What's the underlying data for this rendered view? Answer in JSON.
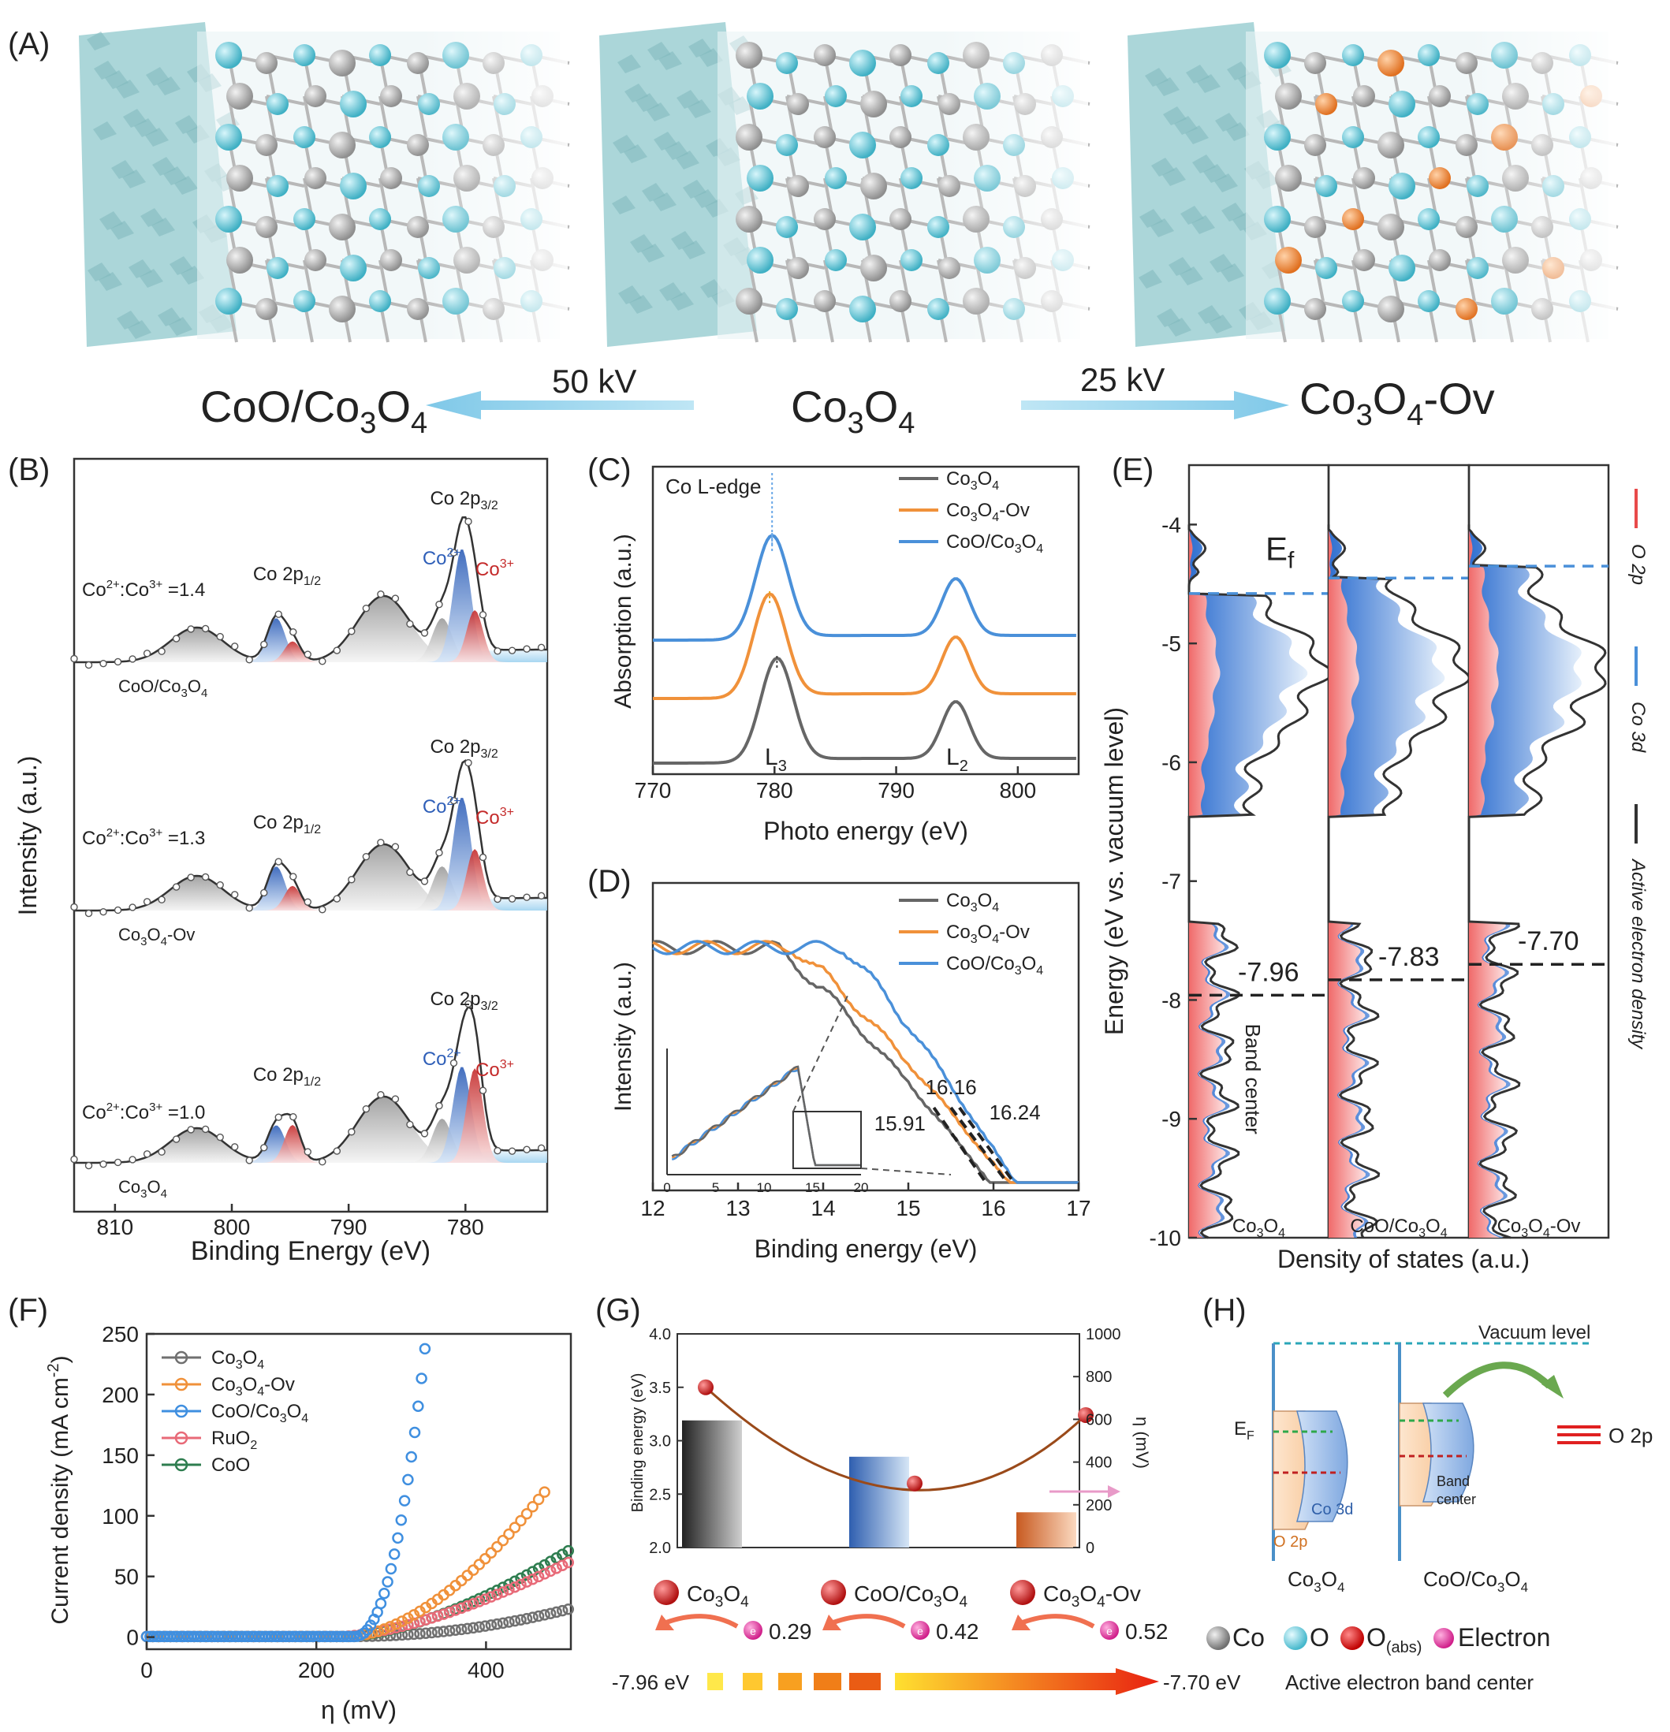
{
  "panel_labels": [
    "(A)",
    "(B)",
    "(C)",
    "(D)",
    "(E)",
    "(F)",
    "(G)",
    "(H)"
  ],
  "panelA": {
    "left_label": "CoO/Co3O4",
    "center_label": "Co3O4",
    "right_label": "Co3O4-Ov",
    "left_arrow_label": "50 kV",
    "right_arrow_label": "25 kV",
    "colors": {
      "co": "#8f8f8f",
      "o": "#55c4d6",
      "ov": "#e8803a",
      "surface": "#8fc9cc"
    }
  },
  "panelB": {
    "xlabel": "Binding Energy (eV)",
    "ylabel": "Intensity (a.u.)",
    "xticks": [
      "810",
      "800",
      "790",
      "780"
    ],
    "peak_12": "Co 2p1/2",
    "peak_32": "Co 2p3/2",
    "co2": "Co2+",
    "co3": "Co3+",
    "spectra": [
      {
        "sample": "CoO/Co3O4",
        "ratio": "Co2+:Co3+ =1.4"
      },
      {
        "sample": "Co3O4-Ov",
        "ratio": "Co2+:Co3+ =1.3"
      },
      {
        "sample": "Co3O4",
        "ratio": "Co2+:Co3+ =1.0"
      }
    ]
  },
  "panelC": {
    "title": "Co L-edge",
    "xlabel": "Photo energy (eV)",
    "ylabel": "Absorption (a.u.)",
    "xticks": [
      "770",
      "780",
      "790",
      "800"
    ],
    "peak_L3": "L3",
    "peak_L2": "L2",
    "legend": [
      "Co3O4",
      "Co3O4-Ov",
      "CoO/Co3O4"
    ],
    "colors": [
      "#666666",
      "#f0913a",
      "#4a90d9"
    ]
  },
  "panelD": {
    "xlabel": "Binding energy (eV)",
    "ylabel": "Intensity (a.u.)",
    "xticks": [
      "12",
      "13",
      "14",
      "15",
      "16",
      "17"
    ],
    "inset_xticks": [
      "0",
      "5",
      "10",
      "15",
      "20"
    ],
    "legend": [
      "Co3O4",
      "Co3O4-Ov",
      "CoO/Co3O4"
    ],
    "cutoffs": [
      "15.91",
      "16.16",
      "16.24"
    ]
  },
  "panelE": {
    "ylabel": "Energy (eV vs. vacuum level)",
    "xlabel": "Density of states (a.u.)",
    "yticks": [
      "-4",
      "-5",
      "-6",
      "-7",
      "-8",
      "-9",
      "-10"
    ],
    "ef_label": "Ef",
    "band_center_label": "Band center",
    "columns": [
      {
        "name": "Co3O4",
        "center": "-7.96"
      },
      {
        "name": "CoO/Co3O4",
        "center": "-7.83"
      },
      {
        "name": "Co3O4-Ov",
        "center": "-7.70"
      }
    ],
    "legend": [
      "O 2p",
      "Co 3d",
      "Active electron density"
    ]
  },
  "panelF": {
    "xlabel": "η (mV)",
    "ylabel": "Current density (mA cm-2)",
    "xticks": [
      "0",
      "200",
      "400"
    ],
    "yticks": [
      "0",
      "50",
      "100",
      "150",
      "200",
      "250"
    ],
    "legend": [
      "Co3O4",
      "Co3O4-Ov",
      "CoO/Co3O4",
      "RuO2",
      "CoO"
    ],
    "colors": [
      "#707070",
      "#f0913a",
      "#3f8fe0",
      "#e86a78",
      "#2e7d4f"
    ]
  },
  "panelG": {
    "ylabel_left": "Binding energy (eV)",
    "ylabel_right": "η (mV)",
    "yticks_left": [
      "2.0",
      "2.5",
      "3.0",
      "3.5",
      "4.0"
    ],
    "yticks_right": [
      "0",
      "200",
      "400",
      "600",
      "800",
      "1000"
    ],
    "bars": [
      {
        "name": "Co3O4",
        "binding": 3.19,
        "eta": 750,
        "electron": "0.29"
      },
      {
        "name": "CoO/Co3O4",
        "binding": 2.85,
        "eta": 300,
        "electron": "0.42"
      },
      {
        "name": "Co3O4-Ov",
        "binding": 2.33,
        "eta": 620,
        "electron": "0.52"
      }
    ],
    "electron_symbol": "e",
    "gradient_start": "-7.96 eV",
    "gradient_end": "-7.70 eV",
    "gradient_caption": "Active electron band center"
  },
  "panelH": {
    "vacuum": "Vacuum level",
    "ef": "EF",
    "co3d": "Co 3d",
    "o2p": "O 2p",
    "band_center": "Band center",
    "o2p_right": "O 2p",
    "left_name": "Co3O4",
    "right_name": "CoO/Co3O4",
    "legend": [
      "Co",
      "O",
      "O(abs)",
      "Electron"
    ]
  }
}
